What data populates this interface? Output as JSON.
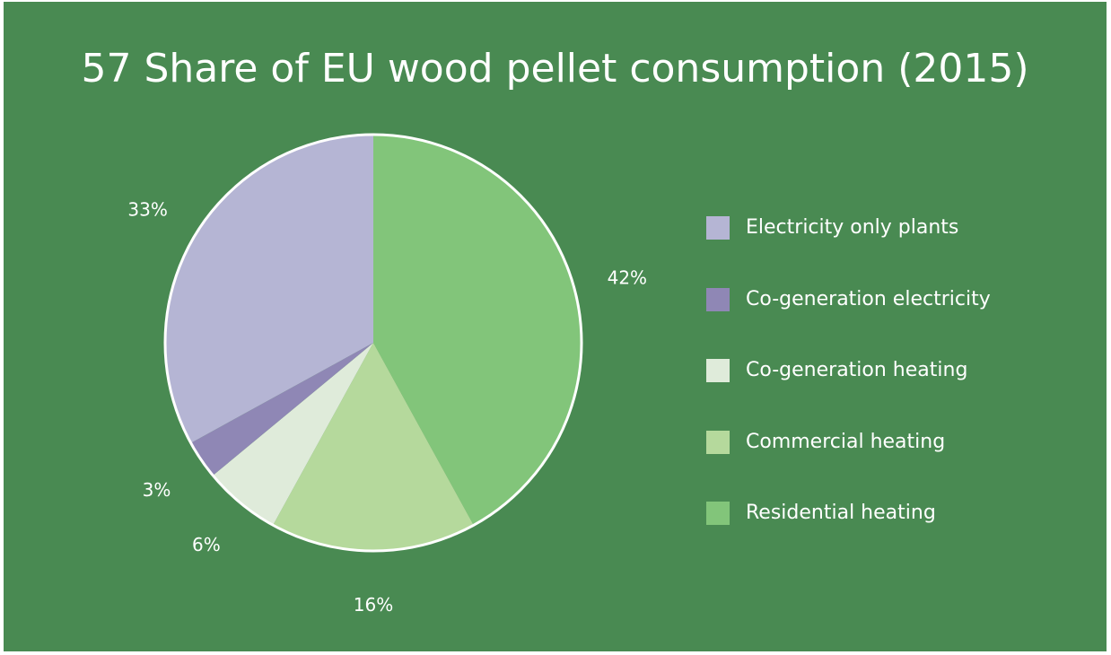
{
  "chart_data": {
    "type": "pie",
    "title": "57 Share of EU wood pellet consumption (2015)",
    "legend_position": "right",
    "slices": [
      {
        "label": "Residential heating",
        "value": 42,
        "display": "42%",
        "color": "#82C57A"
      },
      {
        "label": "Commercial heating",
        "value": 16,
        "display": "16%",
        "color": "#B5D99C"
      },
      {
        "label": "Co-generation heating",
        "value": 6,
        "display": "6%",
        "color": "#DFEBDA"
      },
      {
        "label": "Co-generation electricity",
        "value": 3,
        "display": "3%",
        "color": "#8F87B5"
      },
      {
        "label": "Electricity only plants",
        "value": 33,
        "display": "33%",
        "color": "#B5B5D4"
      }
    ],
    "legend": [
      {
        "label": "Electricity only plants",
        "color": "#B5B5D4"
      },
      {
        "label": "Co-generation electricity",
        "color": "#8F87B5"
      },
      {
        "label": "Co-generation heating",
        "color": "#DFEBDA"
      },
      {
        "label": "Commercial heating",
        "color": "#B5D99C"
      },
      {
        "label": "Residential heating",
        "color": "#82C57A"
      }
    ]
  },
  "colors": {
    "background": "#498A52",
    "text": "#ffffff",
    "slice_border": "#ffffff"
  }
}
